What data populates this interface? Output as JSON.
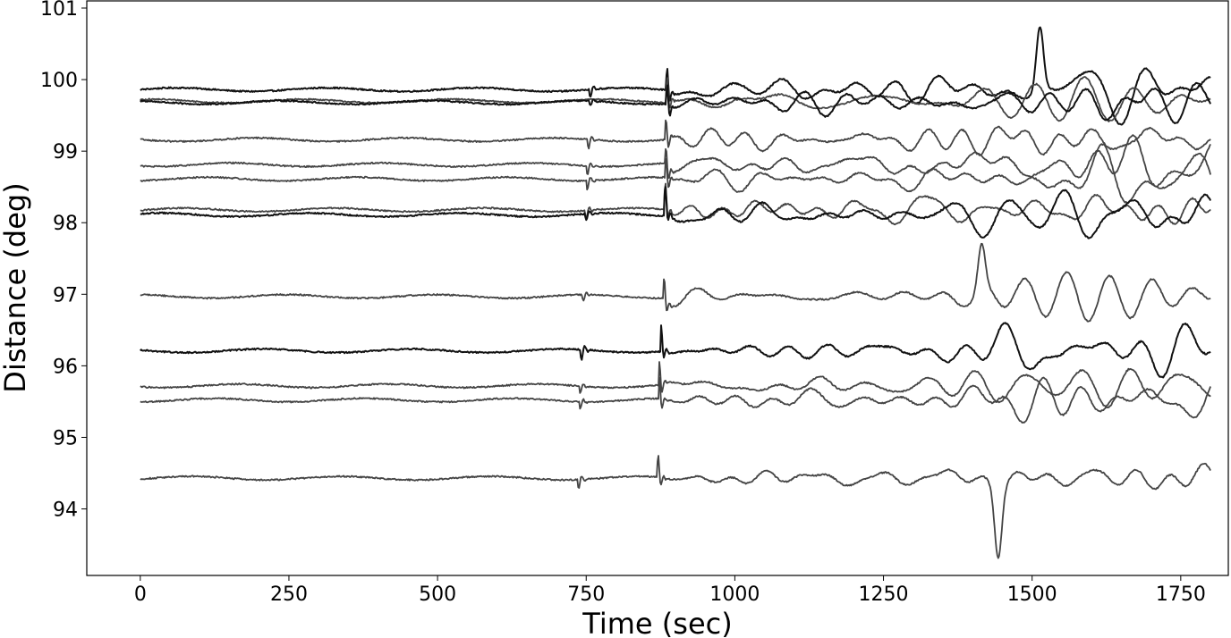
{
  "chart_data": {
    "type": "line",
    "title": "",
    "xlabel": "Time (sec)",
    "ylabel": "Distance (deg)",
    "xlim": [
      -90,
      1830
    ],
    "ylim": [
      93.07,
      101.1
    ],
    "xticks": [
      0,
      250,
      500,
      750,
      1000,
      1250,
      1500,
      1750
    ],
    "xtick_labels": [
      "0",
      "250",
      "500",
      "750",
      "1000",
      "1250",
      "1500",
      "1750"
    ],
    "yticks": [
      94,
      95,
      96,
      97,
      98,
      99,
      100,
      101
    ],
    "ytick_labels": [
      "94",
      "95",
      "96",
      "97",
      "98",
      "99",
      "100",
      "101"
    ],
    "grid": false,
    "legend": "none",
    "colors": {
      "dark_trace": "#111111",
      "gray_trace": "#444444",
      "axes": "#000000"
    },
    "traces_approx": [
      {
        "distance": 99.86,
        "onset_sec": 755,
        "onset_kick": -0.18,
        "arrival_sec": 885,
        "amp_early": 0.12,
        "amp_mid": 0.18,
        "amp_late": 0.42,
        "peak": {
          "t": 1513,
          "value": 100.75
        },
        "color": "dark_trace"
      },
      {
        "distance": 99.7,
        "onset_sec": 755,
        "onset_kick": 0.0,
        "arrival_sec": 885,
        "amp_early": 0.12,
        "amp_mid": 0.18,
        "amp_late": 0.35,
        "color": "gray_trace"
      },
      {
        "distance": 99.68,
        "onset_sec": 755,
        "onset_kick": -0.1,
        "arrival_sec": 885,
        "amp_early": 0.12,
        "amp_mid": 0.16,
        "amp_late": 0.35,
        "color": "dark_trace"
      },
      {
        "distance": 99.16,
        "onset_sec": 752,
        "onset_kick": -0.2,
        "arrival_sec": 883,
        "amp_early": 0.14,
        "amp_mid": 0.2,
        "amp_late": 0.35,
        "color": "gray_trace"
      },
      {
        "distance": 98.81,
        "onset_sec": 750,
        "onset_kick": -0.2,
        "arrival_sec": 883,
        "amp_early": 0.14,
        "amp_mid": 0.22,
        "amp_late": 0.38,
        "color": "gray_trace"
      },
      {
        "distance": 98.61,
        "onset_sec": 750,
        "onset_kick": -0.2,
        "arrival_sec": 883,
        "amp_early": 0.14,
        "amp_mid": 0.22,
        "amp_late": 0.38,
        "color": "gray_trace"
      },
      {
        "distance": 98.18,
        "onset_sec": 748,
        "onset_kick": -0.2,
        "arrival_sec": 882,
        "amp_early": 0.16,
        "amp_mid": 0.2,
        "amp_late": 0.38,
        "color": "gray_trace"
      },
      {
        "distance": 98.11,
        "onset_sec": 748,
        "onset_kick": -0.15,
        "arrival_sec": 882,
        "amp_early": 0.16,
        "amp_mid": 0.2,
        "amp_late": 0.38,
        "color": "dark_trace"
      },
      {
        "distance": 96.97,
        "onset_sec": 743,
        "onset_kick": -0.15,
        "arrival_sec": 880,
        "amp_early": 0.12,
        "amp_mid": 0.15,
        "amp_late": 0.3,
        "peak": {
          "t": 1415,
          "value": 97.6
        },
        "color": "gray_trace"
      },
      {
        "distance": 96.21,
        "onset_sec": 740,
        "onset_kick": -0.25,
        "arrival_sec": 875,
        "amp_early": 0.12,
        "amp_mid": 0.15,
        "amp_late": 0.3,
        "color": "dark_trace"
      },
      {
        "distance": 95.72,
        "onset_sec": 738,
        "onset_kick": -0.15,
        "arrival_sec": 872,
        "amp_early": 0.12,
        "amp_mid": 0.16,
        "amp_late": 0.3,
        "color": "gray_trace"
      },
      {
        "distance": 95.52,
        "onset_sec": 738,
        "onset_kick": -0.15,
        "arrival_sec": 872,
        "amp_early": 0.12,
        "amp_mid": 0.16,
        "amp_late": 0.3,
        "color": "gray_trace"
      },
      {
        "distance": 94.43,
        "onset_sec": 735,
        "onset_kick": -0.2,
        "arrival_sec": 870,
        "amp_early": 0.1,
        "amp_mid": 0.12,
        "amp_late": 0.2,
        "peak": {
          "t": 1443,
          "value": 93.45
        },
        "color": "gray_trace"
      }
    ],
    "time_range": [
      0,
      1800
    ]
  }
}
